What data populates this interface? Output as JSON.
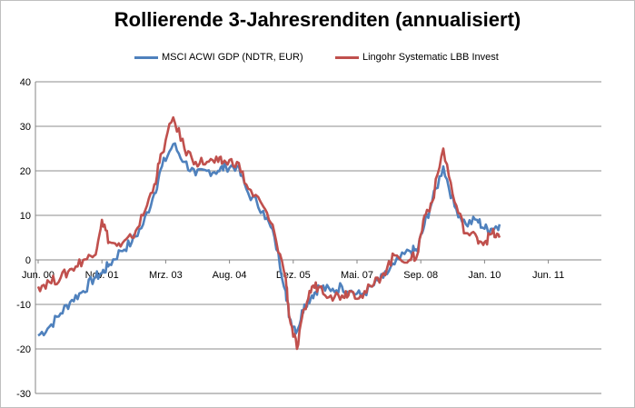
{
  "chart_data": {
    "type": "line",
    "title": "Rollierende 3-Jahresrenditen (annualisiert)",
    "xlabel": "",
    "ylabel": "",
    "x_ticks": [
      "Jun. 00",
      "Nov. 01",
      "Mrz. 03",
      "Aug. 04",
      "Dez. 05",
      "Mai. 07",
      "Sep. 08",
      "Jan. 10",
      "Jun. 11"
    ],
    "y_ticks": [
      40,
      30,
      20,
      10,
      0,
      -10,
      -20,
      -30
    ],
    "ylim": [
      -30,
      40
    ],
    "grid": true,
    "legend_position": "top",
    "series": [
      {
        "name": "MSCI ACWI GDP (NDTR, EUR)",
        "color": "#4f81bd",
        "x": [
          "2000-06",
          "2000-09",
          "2000-12",
          "2001-03",
          "2001-06",
          "2001-09",
          "2001-11",
          "2002-01",
          "2002-04",
          "2002-07",
          "2002-10",
          "2003-01",
          "2003-03",
          "2003-06",
          "2003-09",
          "2003-12",
          "2004-03",
          "2004-06",
          "2004-08",
          "2004-11",
          "2005-02",
          "2005-06",
          "2005-09",
          "2005-12",
          "2006-01",
          "2006-03",
          "2006-05",
          "2006-07",
          "2006-09",
          "2006-12",
          "2007-03",
          "2007-05",
          "2007-08",
          "2007-11",
          "2008-02",
          "2008-05",
          "2008-09",
          "2008-11",
          "2009-01",
          "2009-03",
          "2009-06",
          "2009-09",
          "2009-12",
          "2010-03",
          "2010-05",
          "2010-07",
          "2010-09"
        ],
        "values": [
          -17,
          -15,
          -12,
          -9,
          -7,
          -4,
          -3,
          -1,
          2,
          4,
          8,
          15,
          21,
          26,
          22,
          19,
          20,
          20,
          21,
          21,
          15,
          11,
          5,
          -7,
          -13,
          -16,
          -10,
          -8,
          -6,
          -7,
          -6,
          -7,
          -8,
          -6,
          -4,
          -1,
          2,
          2,
          8,
          13,
          21,
          12,
          8,
          9,
          7,
          7,
          8
        ]
      },
      {
        "name": "Lingohr Systematic LBB Invest",
        "color": "#c0504d",
        "x": [
          "2000-06",
          "2000-09",
          "2000-12",
          "2001-03",
          "2001-06",
          "2001-09",
          "2001-11",
          "2002-01",
          "2002-04",
          "2002-07",
          "2002-10",
          "2003-01",
          "2003-03",
          "2003-06",
          "2003-09",
          "2003-12",
          "2004-03",
          "2004-06",
          "2004-08",
          "2004-11",
          "2005-02",
          "2005-06",
          "2005-09",
          "2005-12",
          "2006-01",
          "2006-03",
          "2006-05",
          "2006-07",
          "2006-09",
          "2006-12",
          "2007-03",
          "2007-05",
          "2007-08",
          "2007-11",
          "2008-02",
          "2008-05",
          "2008-09",
          "2008-11",
          "2009-01",
          "2009-03",
          "2009-06",
          "2009-09",
          "2009-12",
          "2010-03",
          "2010-05",
          "2010-07",
          "2010-09"
        ],
        "values": [
          -6,
          -5,
          -4,
          -2,
          0,
          1,
          9,
          4,
          3,
          5,
          10,
          17,
          24,
          32,
          25,
          22,
          22,
          22,
          22,
          22,
          16,
          12,
          6,
          -4,
          -13,
          -20,
          -11,
          -6,
          -6,
          -8,
          -8,
          -7,
          -8,
          -6,
          -3,
          1,
          0,
          1,
          10,
          13,
          25,
          13,
          6,
          5,
          4,
          6,
          5
        ]
      }
    ]
  }
}
